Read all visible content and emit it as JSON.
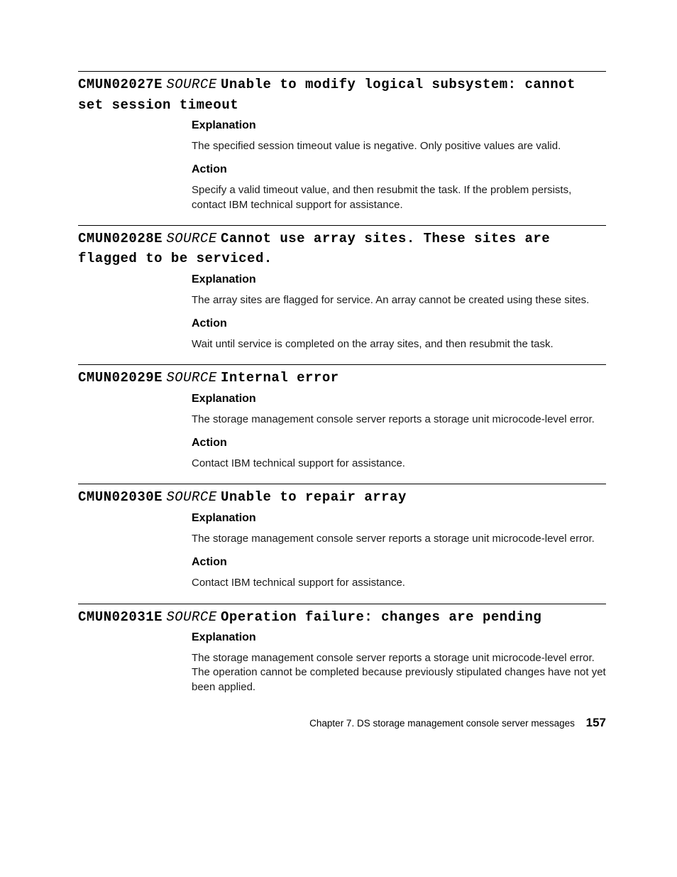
{
  "labels": {
    "explanation": "Explanation",
    "action": "Action",
    "source": "SOURCE"
  },
  "entries": [
    {
      "code": "CMUN02027E",
      "message": "Unable to modify logical subsystem: cannot set session timeout",
      "explanation": "The specified session timeout value is negative. Only positive values are valid.",
      "action": "Specify a valid timeout value, and then resubmit the task. If the problem persists, contact IBM technical support for assistance."
    },
    {
      "code": "CMUN02028E",
      "message": "Cannot use array sites. These sites are flagged to be serviced.",
      "explanation": "The array sites are flagged for service. An array cannot be created using these sites.",
      "action": "Wait until service is completed on the array sites, and then resubmit the task."
    },
    {
      "code": "CMUN02029E",
      "message": "Internal error",
      "explanation": "The storage management console server reports a storage unit microcode-level error.",
      "action": "Contact IBM technical support for assistance."
    },
    {
      "code": "CMUN02030E",
      "message": "Unable to repair array",
      "explanation": "The storage management console server reports a storage unit microcode-level error.",
      "action": "Contact IBM technical support for assistance."
    },
    {
      "code": "CMUN02031E",
      "message": "Operation failure: changes are pending",
      "explanation": "The storage management console server reports a storage unit microcode-level error. The operation cannot be completed because previously stipulated changes have not yet been applied.",
      "action": null
    }
  ],
  "footer": {
    "chapter": "Chapter 7. DS storage management console server messages",
    "page": "157"
  }
}
